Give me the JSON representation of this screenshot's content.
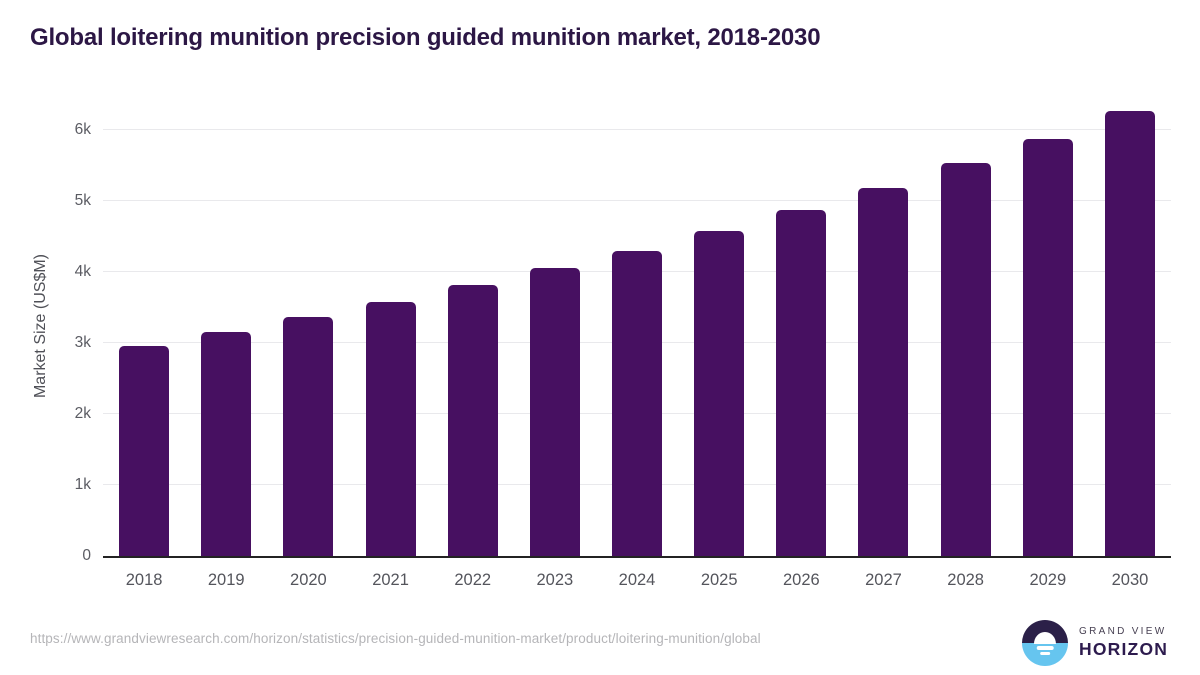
{
  "title": "Global loitering munition precision guided munition market, 2018-2030",
  "chart_data": {
    "type": "bar",
    "title": "Global loitering munition precision guided munition market, 2018-2030",
    "categories": [
      "2018",
      "2019",
      "2020",
      "2021",
      "2022",
      "2023",
      "2024",
      "2025",
      "2026",
      "2027",
      "2028",
      "2029",
      "2030"
    ],
    "values": [
      2965,
      3165,
      3370,
      3580,
      3815,
      4055,
      4300,
      4585,
      4880,
      5190,
      5535,
      5880,
      6275
    ],
    "xlabel": "",
    "ylabel": "Market Size (US$M)",
    "ylim": [
      0,
      6500
    ],
    "ytick_values": [
      0,
      1000,
      2000,
      3000,
      4000,
      5000,
      6000
    ],
    "ytick_labels": [
      "0",
      "1k",
      "2k",
      "3k",
      "4k",
      "5k",
      "6k"
    ],
    "grid": "horizontal-only",
    "legend_position": "none",
    "bar_color": "#471061"
  },
  "colors": {
    "bar": "#471061",
    "title_text": "#2c1745",
    "axis_text": "#54555c",
    "gridline": "#e9e9ec",
    "baseline": "#232323",
    "url_text": "#b5b5b8",
    "logo_dark_half": "#2b2048",
    "logo_blue_half": "#66c5ef"
  },
  "footer": {
    "source_url": "https://www.grandviewresearch.com/horizon/statistics/precision-guided-munition-market/product/loitering-munition/global",
    "brand_top": "GRAND VIEW",
    "brand_bottom": "HORIZON"
  }
}
